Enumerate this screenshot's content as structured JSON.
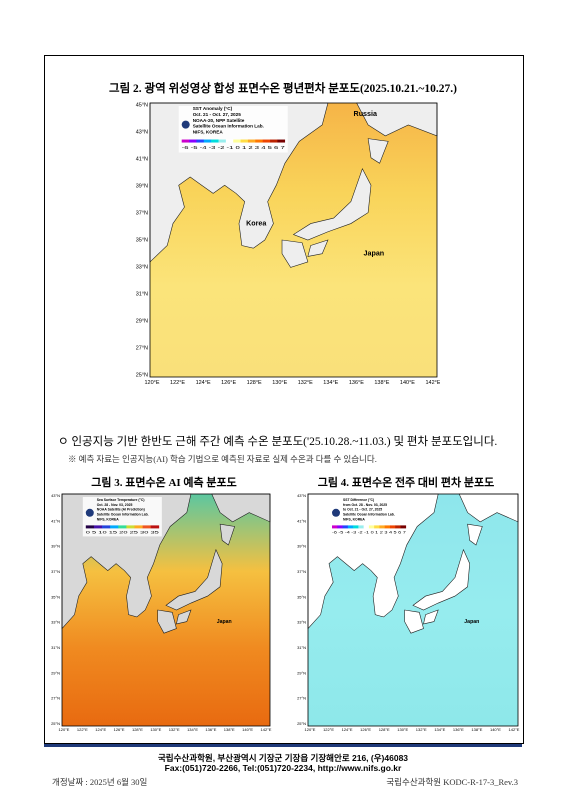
{
  "figure2": {
    "caption": "그림 2. 광역 위성영상 합성 표면수온 평년편차 분포도(2025.10.21.~10.27.)",
    "legend": [
      "SST Anomaly (°C)",
      "Oct. 21 - Oct. 27, 2025",
      "NOAA-20, NPP Satellite",
      "Satellite Ocean Information Lab.",
      "NIFS, KOREA"
    ],
    "scale": "-6 -5 -4 -3 -2 -1 0 1 2 3 4 5 6 7",
    "lat_labels": [
      "45°N",
      "43°N",
      "41°N",
      "39°N",
      "37°N",
      "35°N",
      "33°N",
      "31°N",
      "29°N",
      "27°N",
      "25°N"
    ],
    "lon_labels": [
      "120°E",
      "122°E",
      "124°E",
      "126°E",
      "128°E",
      "130°E",
      "132°E",
      "134°E",
      "136°E",
      "138°E",
      "140°E",
      "142°E"
    ],
    "places": [
      "Russia",
      "Korea",
      "Japan"
    ]
  },
  "bullet": "ㅇ 인공지능 기반 한반도 근해 주간 예측 수온 분포도('25.10.28.~11.03.) 및 편차 분포도입니다.",
  "note": "※ 예측 자료는 인공지능(AI) 학습 기법으로 예측된 자료로 실제 수온과 다를 수 있습니다.",
  "figure3": {
    "caption": "그림 3. 표면수온 AI 예측 분포도",
    "legend": [
      "Sea Surface Temperature (°C)",
      "Oct. 28 - Nov. 03, 2025",
      "NOAA Satellite (AI Prediction)",
      "Satellite Ocean Information Lab.",
      "NIFS, KOREA"
    ],
    "scale": "0 5 10 15 20 25 30 35",
    "lat_labels": [
      "43°N",
      "41°N",
      "39°N",
      "37°N",
      "35°N",
      "33°N",
      "31°N",
      "29°N",
      "27°N",
      "25°N"
    ],
    "lon_labels": [
      "120°E",
      "122°E",
      "124°E",
      "126°E",
      "128°E",
      "130°E",
      "132°E",
      "134°E",
      "136°E",
      "138°E",
      "140°E",
      "142°E"
    ],
    "places": [
      "Japan"
    ]
  },
  "figure4": {
    "caption": "그림 4. 표면수온 전주 대비 편차 분포도",
    "legend": [
      "SST Difference (°C)",
      "from Oct. 28 - Nov. 03, 2025",
      "to Oct. 21 - Oct. 27, 2025",
      "Satellite Ocean Information Lab.",
      "NIFS, KOREA"
    ],
    "scale": "-6 -5 -4 -3 -2 -1 0 1 2 3 4 5 6 7",
    "lat_labels": [
      "43°N",
      "41°N",
      "39°N",
      "37°N",
      "35°N",
      "33°N",
      "31°N",
      "29°N",
      "27°N",
      "25°N"
    ],
    "lon_labels": [
      "120°E",
      "122°E",
      "124°E",
      "126°E",
      "128°E",
      "130°E",
      "132°E",
      "134°E",
      "136°E",
      "138°E",
      "140°E",
      "142°E"
    ],
    "places": [
      "Japan"
    ]
  },
  "footer": {
    "address": "국립수산과학원, 부산광역시 기장군 기장읍 기장해안로 216, (우)46083",
    "contact": "Fax:(051)720-2266, Tel:(051)720-2234, http://www.nifs.go.kr",
    "revision_date": "개정날짜 : 2025년 6월 30일",
    "doc_code": "국립수산과학원 KODC-R-17-3_Rev.3"
  }
}
